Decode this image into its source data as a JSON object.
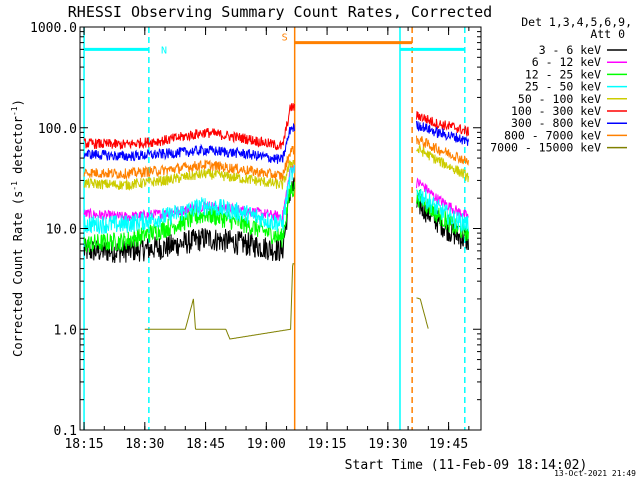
{
  "chart_data": {
    "type": "line",
    "title": "RHESSI Observing Summary Count Rates, Corrected",
    "xlabel": "Start Time (11-Feb-09 18:14:02)",
    "ylabel": "Corrected Count Rate (s⁻¹ detector⁻¹)",
    "ylabel_main": "Corrected Count Rate (s",
    "ylabel_sup1": "-1",
    "ylabel_mid": " detector",
    "ylabel_sup2": "-1",
    "ylabel_end": ")",
    "footer": "13-Oct-2021 21:49",
    "y_scale": "log",
    "ylim": [
      0.1,
      1000
    ],
    "xlim": [
      "18:14",
      "19:53"
    ],
    "x_ticks": [
      "18:15",
      "18:30",
      "18:45",
      "19:00",
      "19:15",
      "19:30",
      "19:45"
    ],
    "y_ticks": [
      "0.1",
      "1.0",
      "10.0",
      "100.0",
      "1000.0"
    ],
    "legend_header": [
      "Det 1,3,4,5,6,9,",
      "Att 0"
    ],
    "legend_placement": "right",
    "series": [
      {
        "name": "3 - 6 keV",
        "color": "#000000",
        "x": [
          "18:15",
          "18:25",
          "18:35",
          "18:45",
          "18:55",
          "19:04",
          "19:06",
          "19:38",
          "19:42",
          "19:47",
          "19:50"
        ],
        "values": [
          6,
          6,
          6.5,
          8,
          7,
          6,
          25,
          17,
          12,
          8.5,
          7.5
        ]
      },
      {
        "name": "6 - 12 keV",
        "color": "#ff00ff",
        "x": [
          "18:15",
          "18:25",
          "18:35",
          "18:45",
          "18:55",
          "19:04",
          "19:06",
          "19:38",
          "19:42",
          "19:47",
          "19:50"
        ],
        "values": [
          14,
          13,
          14,
          17,
          15,
          13,
          40,
          28,
          20,
          15,
          13
        ]
      },
      {
        "name": "12 - 25 keV",
        "color": "#00ff00",
        "x": [
          "18:15",
          "18:25",
          "18:35",
          "18:45",
          "18:55",
          "19:04",
          "19:06",
          "19:38",
          "19:42",
          "19:47",
          "19:50"
        ],
        "values": [
          7,
          7.5,
          10,
          14,
          11,
          8,
          25,
          20,
          14,
          10,
          9
        ]
      },
      {
        "name": "25 - 50 keV",
        "color": "#00ffff",
        "x": [
          "18:15",
          "18:25",
          "18:35",
          "18:45",
          "18:55",
          "19:04",
          "19:06",
          "19:38",
          "19:42",
          "19:47",
          "19:50"
        ],
        "values": [
          11,
          11,
          13,
          17,
          14,
          11,
          35,
          22,
          16,
          12,
          11
        ]
      },
      {
        "name": "50 - 100 keV",
        "color": "#cccc00",
        "x": [
          "18:15",
          "18:25",
          "18:35",
          "18:45",
          "18:55",
          "19:04",
          "19:06",
          "19:38",
          "19:42",
          "19:47",
          "19:50"
        ],
        "values": [
          28,
          27,
          30,
          35,
          31,
          27,
          45,
          60,
          48,
          38,
          32
        ]
      },
      {
        "name": "100 - 300 keV",
        "color": "#ff0000",
        "x": [
          "18:15",
          "18:25",
          "18:35",
          "18:45",
          "18:55",
          "19:04",
          "19:06",
          "19:38",
          "19:42",
          "19:47",
          "19:50"
        ],
        "values": [
          70,
          68,
          75,
          90,
          78,
          65,
          160,
          130,
          110,
          100,
          90
        ]
      },
      {
        "name": "300 - 800 keV",
        "color": "#0000ff",
        "x": [
          "18:15",
          "18:25",
          "18:35",
          "18:45",
          "18:55",
          "19:04",
          "19:06",
          "19:38",
          "19:42",
          "19:47",
          "19:50"
        ],
        "values": [
          55,
          52,
          55,
          60,
          55,
          48,
          100,
          105,
          90,
          80,
          72
        ]
      },
      {
        "name": "800 - 7000 keV",
        "color": "#ff8000",
        "x": [
          "18:15",
          "18:25",
          "18:35",
          "18:45",
          "18:55",
          "19:04",
          "19:06",
          "19:38",
          "19:42",
          "19:47",
          "19:50"
        ],
        "values": [
          36,
          35,
          38,
          43,
          38,
          33,
          60,
          75,
          62,
          52,
          45
        ]
      },
      {
        "name": "7000 - 15000 keV",
        "color": "#808000",
        "x": [
          "18:30",
          "18:40",
          "18:42",
          "18:42.5",
          "18:50",
          "18:51",
          "19:06",
          "19:06.5",
          "19:38",
          "19:40"
        ],
        "values": [
          1.0,
          1.0,
          2.0,
          1.0,
          1.0,
          0.8,
          1.0,
          4.5,
          2.0,
          1.0
        ]
      }
    ],
    "annotations": [
      {
        "label": "N",
        "color": "#00ffff",
        "x_start": "18:15",
        "x_end": "18:31",
        "level": 600
      },
      {
        "label": "",
        "color": "#00ffff",
        "x_start": "19:33",
        "x_end": "19:49",
        "level": 600
      },
      {
        "label": "S",
        "color": "#ff8000",
        "x_start": "19:07",
        "x_end": "19:36",
        "level": 700
      }
    ],
    "vertical_lines": [
      {
        "x": "18:15",
        "color": "#00ffff",
        "style": "solid"
      },
      {
        "x": "18:31",
        "color": "#00ffff",
        "style": "dashed"
      },
      {
        "x": "19:07",
        "color": "#ff8000",
        "style": "solid"
      },
      {
        "x": "19:33",
        "color": "#00ffff",
        "style": "solid"
      },
      {
        "x": "19:36",
        "color": "#ff8000",
        "style": "dashed"
      },
      {
        "x": "19:49",
        "color": "#00ffff",
        "style": "dashed"
      }
    ],
    "data_gap": [
      "19:07",
      "19:37"
    ],
    "grid": false
  }
}
